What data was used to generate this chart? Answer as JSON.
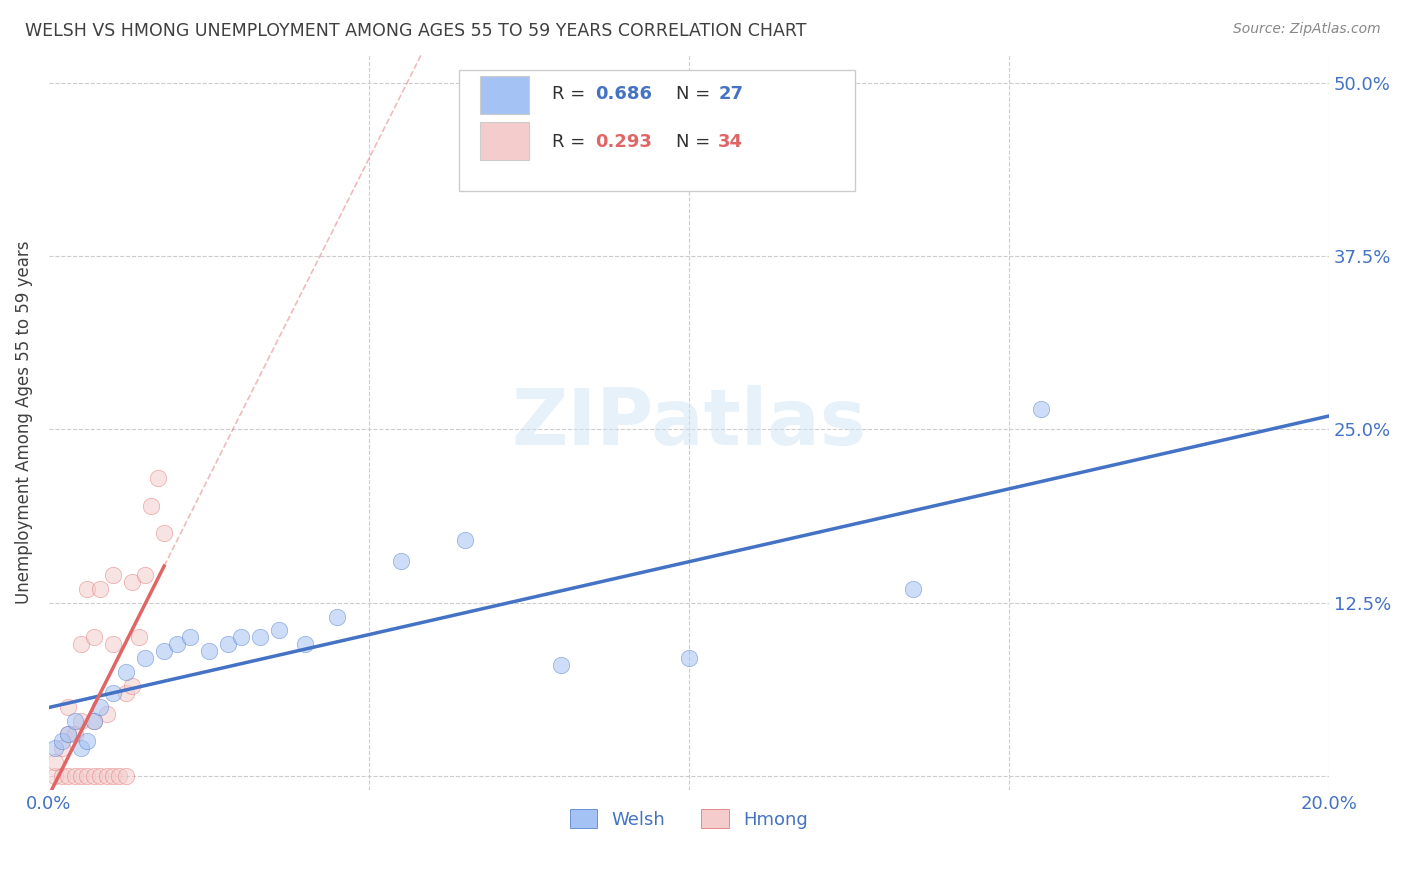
{
  "title": "WELSH VS HMONG UNEMPLOYMENT AMONG AGES 55 TO 59 YEARS CORRELATION CHART",
  "source": "Source: ZipAtlas.com",
  "ylabel": "Unemployment Among Ages 55 to 59 years",
  "welsh_R": 0.686,
  "welsh_N": 27,
  "hmong_R": 0.293,
  "hmong_N": 34,
  "welsh_color": "#a4c2f4",
  "hmong_color": "#f4cccc",
  "welsh_line_color": "#4472c4",
  "hmong_line_color": "#e06666",
  "background_color": "#ffffff",
  "grid_color": "#cccccc",
  "title_color": "#404040",
  "right_tick_color": "#4472c4",
  "bottom_tick_color": "#4472c4",
  "xlim": [
    0.0,
    0.2
  ],
  "ylim": [
    -0.01,
    0.52
  ],
  "xticks": [
    0.0,
    0.05,
    0.1,
    0.15,
    0.2
  ],
  "yticks": [
    0.0,
    0.125,
    0.25,
    0.375,
    0.5
  ],
  "xtick_labels": [
    "0.0%",
    "",
    "",
    "",
    "20.0%"
  ],
  "ytick_labels_right": [
    "",
    "12.5%",
    "25.0%",
    "37.5%",
    "50.0%"
  ],
  "welsh_x": [
    0.001,
    0.002,
    0.003,
    0.004,
    0.005,
    0.006,
    0.007,
    0.008,
    0.01,
    0.012,
    0.015,
    0.018,
    0.02,
    0.022,
    0.025,
    0.028,
    0.03,
    0.033,
    0.036,
    0.04,
    0.045,
    0.055,
    0.065,
    0.08,
    0.1,
    0.135,
    0.155
  ],
  "welsh_y": [
    0.02,
    0.025,
    0.03,
    0.04,
    0.02,
    0.025,
    0.04,
    0.05,
    0.06,
    0.075,
    0.085,
    0.09,
    0.095,
    0.1,
    0.09,
    0.095,
    0.1,
    0.1,
    0.105,
    0.095,
    0.115,
    0.155,
    0.17,
    0.08,
    0.085,
    0.135,
    0.265
  ],
  "hmong_x": [
    0.001,
    0.001,
    0.002,
    0.002,
    0.003,
    0.003,
    0.003,
    0.004,
    0.004,
    0.005,
    0.005,
    0.005,
    0.006,
    0.006,
    0.007,
    0.007,
    0.007,
    0.008,
    0.008,
    0.009,
    0.009,
    0.01,
    0.01,
    0.01,
    0.011,
    0.012,
    0.012,
    0.013,
    0.013,
    0.014,
    0.015,
    0.016,
    0.017,
    0.018
  ],
  "hmong_y": [
    0.0,
    0.01,
    0.0,
    0.02,
    0.0,
    0.03,
    0.05,
    0.0,
    0.03,
    0.0,
    0.04,
    0.095,
    0.0,
    0.135,
    0.0,
    0.04,
    0.1,
    0.0,
    0.135,
    0.0,
    0.045,
    0.0,
    0.095,
    0.145,
    0.0,
    0.0,
    0.06,
    0.065,
    0.14,
    0.1,
    0.145,
    0.195,
    0.215,
    0.175
  ],
  "watermark_text": "ZIPatlas",
  "marker_size": 140,
  "marker_alpha": 0.55,
  "marker_edge_alpha": 0.8
}
